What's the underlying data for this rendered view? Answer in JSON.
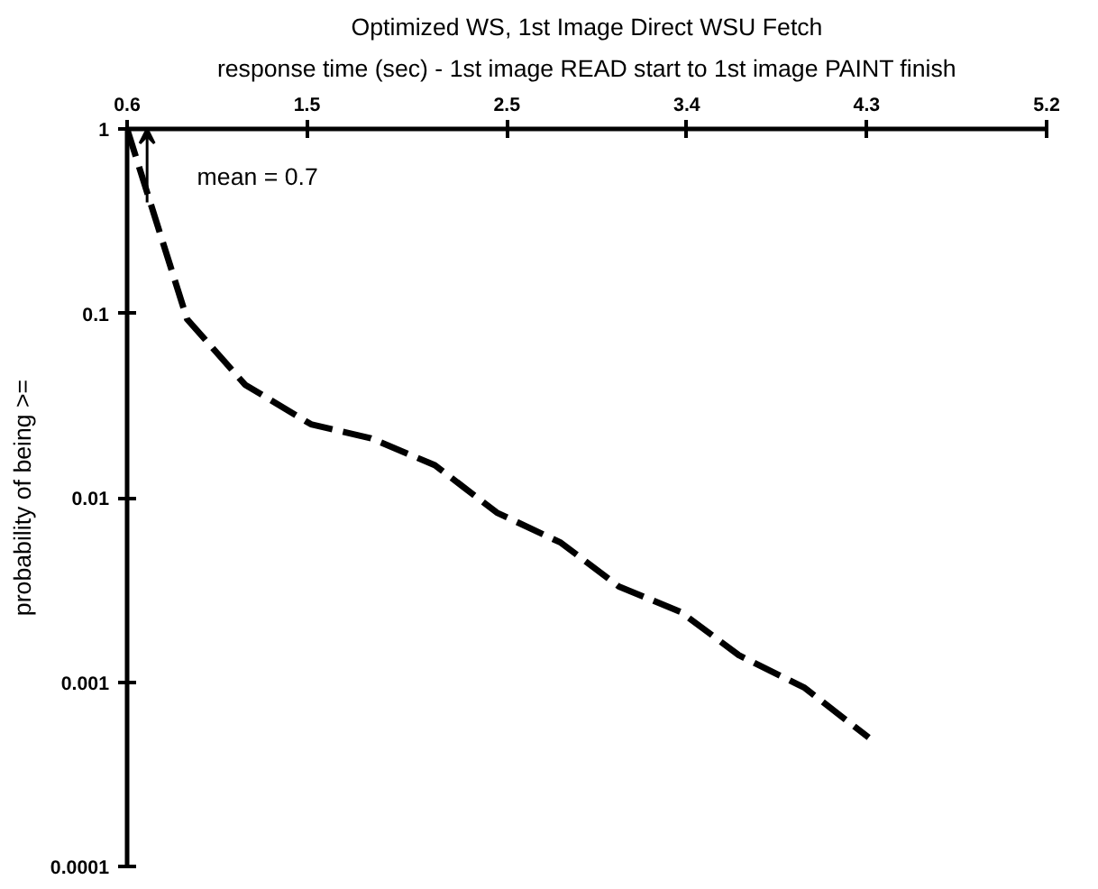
{
  "chart_data": {
    "type": "line",
    "title": "Optimized WS, 1st Image Direct WSU Fetch",
    "xlabel": "response time (sec) - 1st image READ start to 1st image PAINT finish",
    "ylabel": "probability of being >=",
    "x": [
      0.6,
      0.9,
      1.19,
      1.52,
      1.82,
      2.14,
      2.45,
      2.77,
      3.06,
      3.37,
      3.66,
      3.99,
      4.31
    ],
    "series": [
      {
        "color": "#000000",
        "values": [
          1,
          0.093,
          0.041,
          0.025,
          0.021,
          0.015,
          0.0083,
          0.0057,
          0.0033,
          0.0024,
          0.0014,
          0.00093,
          0.0005
        ]
      }
    ],
    "xlim": [
      0.6,
      5.2
    ],
    "xticks": [
      0.6,
      1.5,
      2.5,
      3.4,
      4.3,
      5.2
    ],
    "ylim": [
      0.0001,
      1
    ],
    "yticks": [
      0.0001,
      0.001,
      0.01,
      0.1,
      1
    ],
    "log": "y",
    "grid": false,
    "line_style": "dashed",
    "ref_lines": [
      {
        "axis": "x",
        "value": 0.7,
        "label": "mean = 0.7"
      }
    ]
  }
}
